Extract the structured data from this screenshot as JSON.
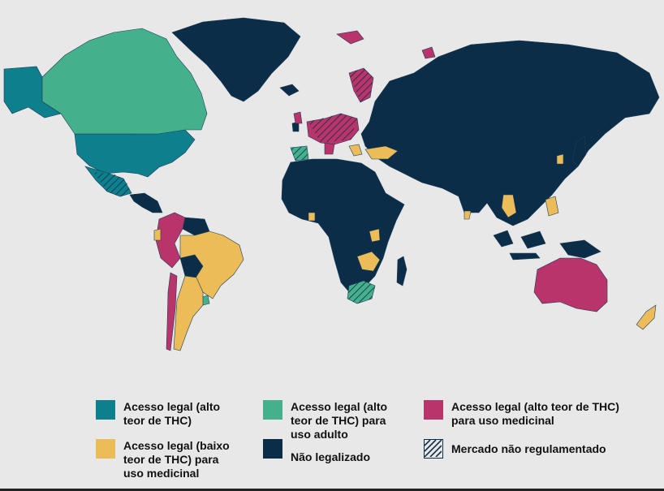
{
  "colors": {
    "ocean": "#e8e8e8",
    "full_access": "#0e7f8c",
    "adult_use": "#45b08c",
    "medical_high": "#b8346a",
    "medical_low": "#ebbc57",
    "not_legal": "#0c2d48",
    "border": "#1b3d59"
  },
  "legend": {
    "full_access": "Acesso legal (alto\nteor de THC)",
    "adult_use": "Acesso legal (alto\nteor de THC) para\nuso adulto",
    "medical_high": "Acesso legal (alto teor de THC)\npara uso medicinal",
    "medical_low": "Acesso legal (baixo\nteor de THC) para\nuso medicinal",
    "not_legal": "Não legalizado",
    "unregulated": "Mercado não regulamentado"
  },
  "icons": {
    "hatch": "diagonal-hatch-pattern"
  }
}
